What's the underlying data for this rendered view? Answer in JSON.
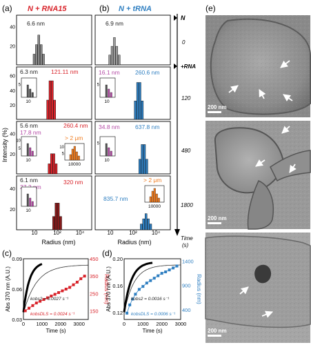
{
  "panels": {
    "a": {
      "letter": "(a)",
      "title": "N + RNA15"
    },
    "b": {
      "letter": "(b)",
      "title": "N + tRNA"
    },
    "c": {
      "letter": "(c)"
    },
    "d": {
      "letter": "(d)"
    },
    "e": {
      "letter": "(e)"
    }
  },
  "colors": {
    "red": "#d8232a",
    "blue": "#2f7fc1",
    "magenta": "#b44aa5",
    "orange": "#f07d22",
    "dark": "#222222"
  },
  "axes": {
    "dls_ylabel": "Intensity (%)",
    "dls_xlabel": "Radius (nm)",
    "dls_ticks_x": [
      "10",
      "10²",
      "10⁴"
    ],
    "time_label": "Time",
    "time_unit": "(s)",
    "time_marks": [
      "N",
      "0",
      "+RNA",
      "120",
      "480",
      "1800"
    ]
  },
  "dls_rows": {
    "a": [
      {
        "labels": [
          {
            "text": "6.6 nm",
            "color": "dark"
          }
        ]
      },
      {
        "labels": [
          {
            "text": "6.3 nm",
            "color": "dark"
          },
          {
            "text": "121.11 nm",
            "color": "red"
          }
        ],
        "inset_tick": "10"
      },
      {
        "labels": [
          {
            "text": "5.6 nm",
            "color": "dark"
          },
          {
            "text": "17.8 nm",
            "color": "magenta"
          },
          {
            "text": "260.4 nm",
            "color": "red"
          },
          {
            "text": "> 2 μm",
            "color": "orange"
          }
        ],
        "inset_tick": "10",
        "inset2_tick": "10000"
      },
      {
        "labels": [
          {
            "text": "6.1 nm",
            "color": "dark"
          },
          {
            "text": "27.2 nm",
            "color": "magenta"
          },
          {
            "text": "320 nm",
            "color": "red"
          }
        ],
        "inset_tick": "10"
      }
    ],
    "b": [
      {
        "labels": [
          {
            "text": "6.9 nm",
            "color": "dark"
          }
        ]
      },
      {
        "labels": [
          {
            "text": "16.1 nm",
            "color": "magenta"
          },
          {
            "text": "260.6 nm",
            "color": "blue"
          }
        ],
        "inset_tick": "10"
      },
      {
        "labels": [
          {
            "text": "34.8 nm",
            "color": "magenta"
          },
          {
            "text": "637.8 nm",
            "color": "blue"
          }
        ],
        "inset_tick": "10"
      },
      {
        "labels": [
          {
            "text": "> 2 μm",
            "color": "orange"
          },
          {
            "text": "835.7 nm",
            "color": "blue"
          }
        ],
        "inset_tick": "10000"
      }
    ]
  },
  "dls_yticks": {
    "row1": [
      "20",
      "40"
    ],
    "row2": [
      "20",
      "40",
      "60"
    ],
    "row3": [
      "20",
      "40"
    ],
    "row4": [
      "20",
      "40"
    ],
    "inset": [
      "5"
    ]
  },
  "inset_yticks": {
    "a1": [
      "5"
    ],
    "a2": [
      "5",
      "10"
    ],
    "a4": [
      "5"
    ],
    "b1": [
      "5"
    ],
    "b2": [
      "5"
    ],
    "b4": [
      "5"
    ]
  },
  "chart_data": [
    {
      "type": "scatter",
      "panel": "c",
      "xlabel": "Time (s)",
      "ylabel": "Abs 370 nm (A.U.)",
      "y2label": "Radius (nm)",
      "xlim": [
        0,
        3500
      ],
      "ylim": [
        0.03,
        0.09
      ],
      "y2lim": [
        100,
        450
      ],
      "xticks": [
        "0",
        "1000",
        "2000",
        "3000"
      ],
      "yticks": [
        "0.03",
        "0.06",
        "0.09"
      ],
      "y2ticks": [
        "150",
        "250",
        "350",
        "450"
      ],
      "annotations": [
        {
          "text": "kobs2 = 0.0027 s⁻¹",
          "color": "dark"
        },
        {
          "text": "kobsDLS = 0.0024 s⁻¹",
          "color": "red"
        }
      ],
      "series": [
        {
          "values_x": [
            100,
            300,
            500,
            700,
            900,
            1100,
            1300,
            1500,
            1700,
            1900,
            2100,
            2300,
            2500,
            2700,
            2900,
            3100,
            3300
          ],
          "values_y": [
            150,
            165,
            180,
            195,
            205,
            215,
            225,
            235,
            245,
            255,
            265,
            275,
            285,
            300,
            315,
            335,
            350
          ],
          "axis": "y2",
          "color": "red"
        }
      ]
    },
    {
      "type": "scatter",
      "panel": "d",
      "xlabel": "Time (s)",
      "ylabel": "Abs 370 nm (A.U.)",
      "y2label": "Radius (nm)",
      "xlim": [
        0,
        3000
      ],
      "ylim": [
        0.11,
        0.2
      ],
      "y2lim": [
        200,
        1450
      ],
      "xticks": [
        "0",
        "1000",
        "2000",
        "3000"
      ],
      "yticks": [
        "0.12",
        "0.16",
        "0.20"
      ],
      "y2ticks": [
        "400",
        "900",
        "1400"
      ],
      "annotations": [
        {
          "text": "kobs2 = 0.0016 s⁻¹",
          "color": "dark"
        },
        {
          "text": "kobsDLS = 0.0006 s⁻¹",
          "color": "blue"
        }
      ],
      "series": [
        {
          "values_x": [
            150,
            300,
            450,
            600,
            800,
            1000,
            1200,
            1400,
            1600,
            1800,
            2000,
            2200,
            2400,
            2600,
            2800
          ],
          "values_y": [
            330,
            500,
            620,
            720,
            820,
            880,
            950,
            1000,
            1050,
            1100,
            1150,
            1180,
            1220,
            1260,
            1300
          ],
          "axis": "y2",
          "color": "blue"
        }
      ]
    }
  ],
  "micrographs": [
    {
      "scale": "200 nm"
    },
    {
      "scale": "200 nm"
    },
    {
      "scale": "200 nm"
    }
  ]
}
